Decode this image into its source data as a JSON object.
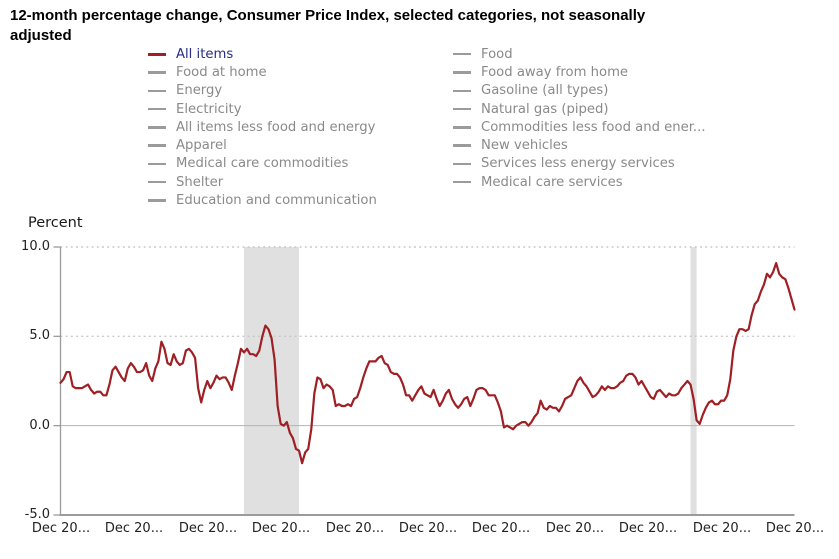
{
  "title": {
    "line1": "12-month percentage change, Consumer Price Index, selected categories, not seasonally",
    "line2": "adjusted",
    "full": "12-month percentage change, Consumer Price Index, selected categories, not seasonally adjusted"
  },
  "legend": {
    "columns": [
      {
        "items": [
          {
            "label": "All items",
            "selected": true
          },
          {
            "label": "Food at home",
            "selected": false
          },
          {
            "label": "Energy",
            "selected": false
          },
          {
            "label": "Electricity",
            "selected": false
          },
          {
            "label": "All items less food and energy",
            "selected": false
          },
          {
            "label": "Apparel",
            "selected": false
          },
          {
            "label": "Medical care commodities",
            "selected": false
          },
          {
            "label": "Shelter",
            "selected": false
          },
          {
            "label": "Education and communication",
            "selected": false
          }
        ]
      },
      {
        "items": [
          {
            "label": "Food",
            "selected": false
          },
          {
            "label": "Food away from home",
            "selected": false
          },
          {
            "label": "Gasoline (all types)",
            "selected": false
          },
          {
            "label": "Natural gas (piped)",
            "selected": false
          },
          {
            "label": "Commodities less food and ener...",
            "selected": false
          },
          {
            "label": "New vehicles",
            "selected": false
          },
          {
            "label": "Services less energy services",
            "selected": false
          },
          {
            "label": "Medical care services",
            "selected": false
          }
        ]
      }
    ]
  },
  "chart": {
    "y_axis_label": "Percent",
    "y_ticks": [
      "10.0",
      "5.0",
      "0.0",
      "-5.0"
    ],
    "x_ticks": [
      "Dec 20...",
      "Dec 20...",
      "Dec 20...",
      "Dec 20...",
      "Dec 20...",
      "Dec 20...",
      "Dec 20...",
      "Dec 20...",
      "Dec 20...",
      "Dec 20...",
      "Dec 20..."
    ]
  },
  "colors": {
    "line": "#9e1f24",
    "legend_active_text": "#262c87",
    "legend_inactive_text": "#8a8a8a",
    "legend_inactive_dash": "#9b9b9b",
    "recession_band": "#e0e0e0",
    "grid_dotted": "#c6c6c6",
    "grid_zero": "#b4b4b4",
    "axis": "#9b9b9b",
    "tick_text": "#222222"
  },
  "chart_data": {
    "type": "line",
    "title": "12-month percentage change, Consumer Price Index, selected categories, not seasonally adjusted",
    "xlabel": "",
    "ylabel": "Percent",
    "ylim": [
      -5,
      10
    ],
    "y_tick_values": [
      10,
      5,
      0,
      -5
    ],
    "x_start": "Dec 2002",
    "x_end": "Dec 2022",
    "x_interval": "monthly",
    "x_tick_every_months": 24,
    "grid": {
      "dotted_at": [
        10,
        5
      ],
      "solid_at": [
        0
      ],
      "legend_position": "top"
    },
    "recession_bands": [
      {
        "start_index": 60,
        "end_index": 78,
        "label": "Dec 2007 - Jun 2009"
      },
      {
        "start_index": 206,
        "end_index": 208,
        "label": "Feb 2020 - Apr 2020"
      }
    ],
    "series": [
      {
        "name": "All items",
        "color": "#9e1f24",
        "values": [
          2.4,
          2.6,
          3.0,
          3.0,
          2.2,
          2.1,
          2.1,
          2.1,
          2.2,
          2.3,
          2.0,
          1.8,
          1.9,
          1.9,
          1.7,
          1.7,
          2.3,
          3.1,
          3.3,
          3.0,
          2.7,
          2.5,
          3.2,
          3.5,
          3.3,
          3.0,
          3.0,
          3.1,
          3.5,
          2.8,
          2.5,
          3.2,
          3.6,
          4.7,
          4.3,
          3.5,
          3.4,
          4.0,
          3.6,
          3.4,
          3.5,
          4.2,
          4.3,
          4.1,
          3.8,
          2.1,
          1.3,
          2.0,
          2.5,
          2.1,
          2.4,
          2.8,
          2.6,
          2.7,
          2.7,
          2.4,
          2.0,
          2.8,
          3.5,
          4.3,
          4.1,
          4.3,
          4.0,
          4.0,
          3.9,
          4.2,
          5.0,
          5.6,
          5.4,
          4.9,
          3.7,
          1.1,
          0.1,
          0.0,
          0.2,
          -0.4,
          -0.7,
          -1.3,
          -1.4,
          -2.1,
          -1.5,
          -1.3,
          -0.2,
          1.8,
          2.7,
          2.6,
          2.1,
          2.3,
          2.2,
          2.0,
          1.1,
          1.2,
          1.1,
          1.1,
          1.2,
          1.1,
          1.5,
          1.6,
          2.1,
          2.7,
          3.2,
          3.6,
          3.6,
          3.6,
          3.8,
          3.9,
          3.5,
          3.4,
          3.0,
          2.9,
          2.9,
          2.7,
          2.3,
          1.7,
          1.7,
          1.4,
          1.7,
          2.0,
          2.2,
          1.8,
          1.7,
          1.6,
          2.0,
          1.5,
          1.1,
          1.4,
          1.8,
          2.0,
          1.5,
          1.2,
          1.0,
          1.2,
          1.5,
          1.6,
          1.1,
          1.5,
          2.0,
          2.1,
          2.1,
          2.0,
          1.7,
          1.7,
          1.7,
          1.3,
          0.8,
          -0.1,
          0.0,
          -0.1,
          -0.2,
          0.0,
          0.1,
          0.2,
          0.2,
          0.0,
          0.2,
          0.5,
          0.7,
          1.4,
          1.0,
          0.9,
          1.1,
          1.0,
          1.0,
          0.8,
          1.1,
          1.5,
          1.6,
          1.7,
          2.1,
          2.5,
          2.7,
          2.4,
          2.2,
          1.9,
          1.6,
          1.7,
          1.9,
          2.2,
          2.0,
          2.2,
          2.1,
          2.1,
          2.2,
          2.4,
          2.5,
          2.8,
          2.9,
          2.9,
          2.7,
          2.3,
          2.5,
          2.2,
          1.9,
          1.6,
          1.5,
          1.9,
          2.0,
          1.8,
          1.6,
          1.8,
          1.7,
          1.7,
          1.8,
          2.1,
          2.3,
          2.5,
          2.3,
          1.5,
          0.3,
          0.1,
          0.6,
          1.0,
          1.3,
          1.4,
          1.2,
          1.2,
          1.4,
          1.4,
          1.7,
          2.6,
          4.2,
          5.0,
          5.4,
          5.4,
          5.3,
          5.4,
          6.2,
          6.8,
          7.0,
          7.5,
          7.9,
          8.5,
          8.3,
          8.6,
          9.1,
          8.5,
          8.3,
          8.2,
          7.7,
          7.1,
          6.5
        ]
      }
    ]
  }
}
